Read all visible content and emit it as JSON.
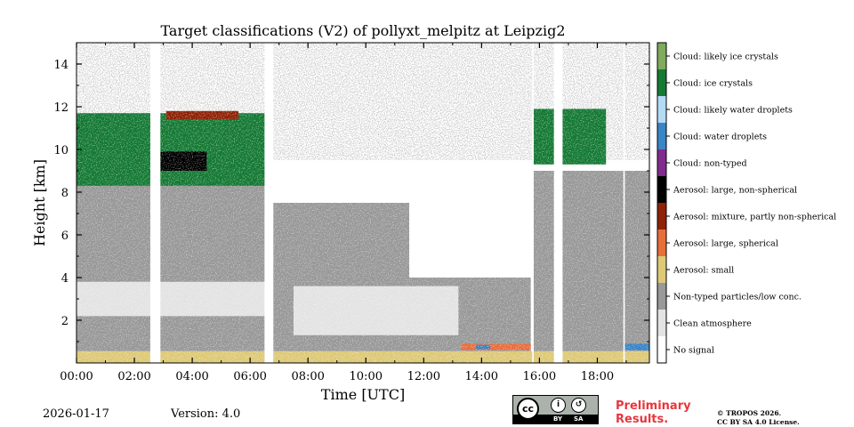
{
  "header": {
    "title": "Target classifications (V2) of pollyxt_melpitz at Leipzig2"
  },
  "footer": {
    "date": "2026-01-17",
    "version": "Version: 4.0",
    "preliminary_line1": "Preliminary",
    "preliminary_line2": "Results.",
    "copyright_line1": "© TROPOS 2026.",
    "copyright_line2": "CC BY SA 4.0 License.",
    "license_badge": {
      "by": "BY",
      "sa": "SA",
      "cc": "cc"
    }
  },
  "chart_data": {
    "type": "heatmap",
    "title": "Target classifications (V2) of pollyxt_melpitz at Leipzig2",
    "xlabel": "Time [UTC]",
    "ylabel": "Height [km]",
    "xlim": [
      0,
      19.8
    ],
    "ylim": [
      0,
      15
    ],
    "xticks": [
      0,
      2,
      4,
      6,
      8,
      10,
      12,
      14,
      16,
      18
    ],
    "xtick_labels": [
      "00:00",
      "02:00",
      "04:00",
      "06:00",
      "08:00",
      "10:00",
      "12:00",
      "14:00",
      "16:00",
      "18:00"
    ],
    "yticks": [
      2,
      4,
      6,
      8,
      10,
      12,
      14
    ],
    "ytick_labels": [
      "2",
      "4",
      "6",
      "8",
      "10",
      "12",
      "14"
    ],
    "colorbar": [
      {
        "label": "Cloud: likely ice crystals",
        "color": "#7fab5c"
      },
      {
        "label": "Cloud: ice crystals",
        "color": "#167a35"
      },
      {
        "label": "Cloud: likely water droplets",
        "color": "#b3dbf5"
      },
      {
        "label": "Cloud: water droplets",
        "color": "#3a85c5"
      },
      {
        "label": "Cloud: non-typed",
        "color": "#812b8e"
      },
      {
        "label": "Aerosol: large, non-spherical",
        "color": "#000000"
      },
      {
        "label": "Aerosol: mixture, partly non-spherical",
        "color": "#8e2307"
      },
      {
        "label": "Aerosol: large, spherical",
        "color": "#e86e3b"
      },
      {
        "label": "Aerosol: small",
        "color": "#ddc977"
      },
      {
        "label": "Non-typed particles/low conc.",
        "color": "#999999"
      },
      {
        "label": "Clean atmosphere",
        "color": "#e3e3e3"
      },
      {
        "label": "No signal",
        "color": "#ffffff"
      }
    ],
    "data_gaps_utc": [
      [
        2.55,
        2.9
      ],
      [
        6.5,
        6.8
      ],
      [
        15.75,
        15.8
      ],
      [
        16.5,
        16.8
      ],
      [
        18.9,
        18.95
      ]
    ],
    "layers": [
      {
        "class": "Aerosol: small",
        "start": 0.0,
        "end": 19.8,
        "bottom": 0.0,
        "top": 0.55
      },
      {
        "class": "Non-typed particles/low conc.",
        "start": 0.0,
        "end": 6.5,
        "bottom": 0.55,
        "top": 2.2
      },
      {
        "class": "Clean atmosphere",
        "start": 0.0,
        "end": 6.5,
        "bottom": 2.2,
        "top": 3.8
      },
      {
        "class": "Non-typed particles/low conc.",
        "start": 0.0,
        "end": 6.5,
        "bottom": 3.8,
        "top": 9.3
      },
      {
        "class": "Cloud: ice crystals",
        "start": 0.0,
        "end": 6.5,
        "bottom": 8.3,
        "top": 11.7
      },
      {
        "class": "Aerosol: large, non-spherical",
        "start": 2.9,
        "end": 4.5,
        "bottom": 9.0,
        "top": 9.9
      },
      {
        "class": "Aerosol: mixture, partly non-spherical",
        "start": 3.1,
        "end": 5.6,
        "bottom": 11.4,
        "top": 11.8
      },
      {
        "class": "Non-typed particles/low conc.",
        "start": 6.8,
        "end": 15.7,
        "bottom": 0.55,
        "top": 4.0
      },
      {
        "class": "Clean atmosphere",
        "start": 7.5,
        "end": 13.2,
        "bottom": 1.3,
        "top": 3.6
      },
      {
        "class": "Non-typed particles/low conc.",
        "start": 6.8,
        "end": 11.5,
        "bottom": 4.0,
        "top": 7.5
      },
      {
        "class": "Aerosol: large, spherical",
        "start": 13.3,
        "end": 15.7,
        "bottom": 0.6,
        "top": 0.9
      },
      {
        "class": "Cloud: water droplets",
        "start": 13.8,
        "end": 14.3,
        "bottom": 0.65,
        "top": 0.85
      },
      {
        "class": "Non-typed particles/low conc.",
        "start": 15.8,
        "end": 19.8,
        "bottom": 0.55,
        "top": 9.0
      },
      {
        "class": "Cloud: ice crystals",
        "start": 15.8,
        "end": 18.3,
        "bottom": 9.3,
        "top": 11.9
      },
      {
        "class": "Cloud: water droplets",
        "start": 18.9,
        "end": 19.8,
        "bottom": 0.6,
        "top": 0.9
      }
    ]
  }
}
